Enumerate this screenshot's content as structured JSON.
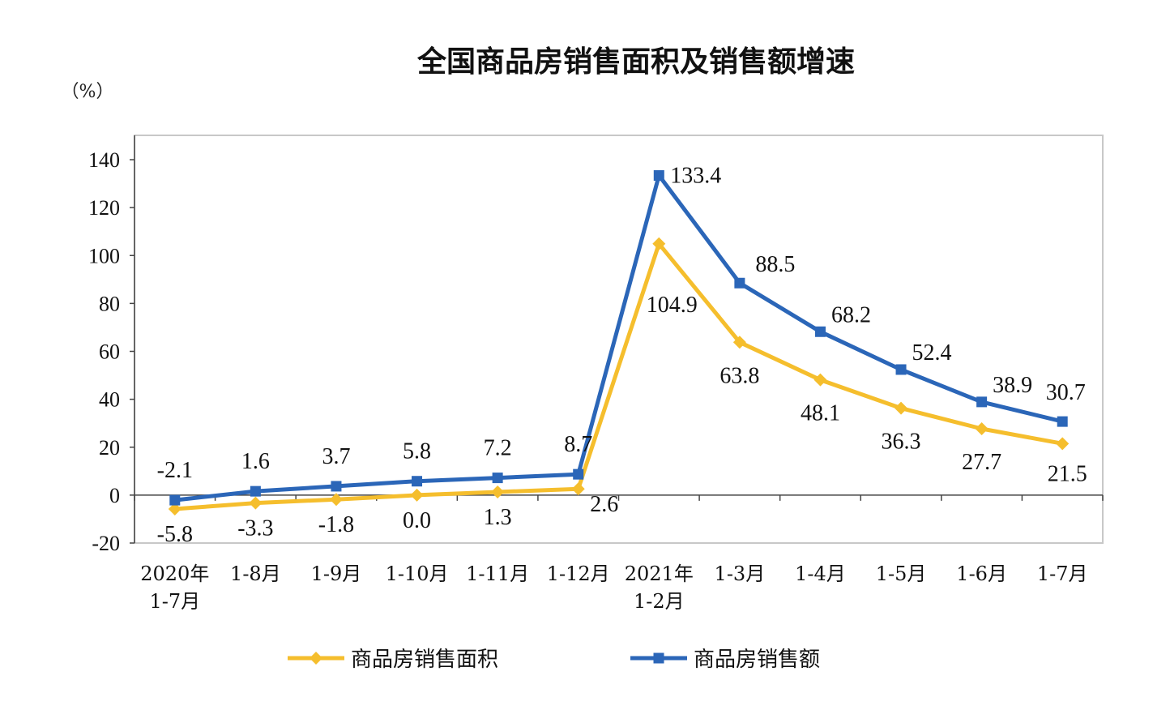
{
  "chart_data": {
    "type": "line",
    "title": "全国商品房销售面积及销售额增速",
    "ylabel": "（%）",
    "ylim": [
      -20,
      140
    ],
    "yticks": [
      -20,
      0,
      20,
      40,
      60,
      80,
      100,
      120,
      140
    ],
    "grid": false,
    "legend_position": "bottom",
    "categories": [
      [
        "2020年",
        "1-7月"
      ],
      [
        "1-8月"
      ],
      [
        "1-9月"
      ],
      [
        "1-10月"
      ],
      [
        "1-11月"
      ],
      [
        "1-12月"
      ],
      [
        "2021年",
        "1-2月"
      ],
      [
        "1-3月"
      ],
      [
        "1-4月"
      ],
      [
        "1-5月"
      ],
      [
        "1-6月"
      ],
      [
        "1-7月"
      ]
    ],
    "series": [
      {
        "name": "商品房销售面积",
        "color": "#F5BE2D",
        "marker": "diamond",
        "values": [
          -5.8,
          -3.3,
          -1.8,
          0.0,
          1.3,
          2.6,
          104.9,
          63.8,
          48.1,
          36.3,
          27.7,
          21.5
        ],
        "labels": [
          "-5.8",
          "-3.3",
          "-1.8",
          "0.0",
          "1.3",
          "2.6",
          "104.9",
          "63.8",
          "48.1",
          "36.3",
          "27.7",
          "21.5"
        ]
      },
      {
        "name": "商品房销售额",
        "color": "#2B66B8",
        "marker": "square",
        "values": [
          -2.1,
          1.6,
          3.7,
          5.8,
          7.2,
          8.7,
          133.4,
          88.5,
          68.2,
          52.4,
          38.9,
          30.7
        ],
        "labels": [
          "-2.1",
          "1.6",
          "3.7",
          "5.8",
          "7.2",
          "8.7",
          "133.4",
          "88.5",
          "68.2",
          "52.4",
          "38.9",
          "30.7"
        ]
      }
    ]
  }
}
